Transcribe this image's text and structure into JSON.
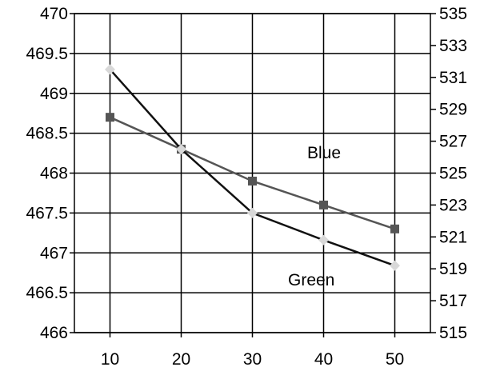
{
  "chart_data": {
    "type": "line",
    "x": [
      10,
      20,
      30,
      40,
      50
    ],
    "xlim": [
      5,
      55
    ],
    "x_ticks": [
      "10",
      "20",
      "30",
      "40",
      "50"
    ],
    "y_left": {
      "range": [
        466,
        470
      ],
      "ticks": [
        "466",
        "466.5",
        "467",
        "467.5",
        "468",
        "468.5",
        "469",
        "469.5",
        "470"
      ]
    },
    "y_right": {
      "range": [
        515,
        535
      ],
      "ticks": [
        "515",
        "517",
        "519",
        "521",
        "523",
        "525",
        "527",
        "529",
        "531",
        "533",
        "535"
      ]
    },
    "grid": true,
    "series": [
      {
        "name": "Blue",
        "axis": "left",
        "values": [
          468.7,
          468.3,
          467.9,
          467.6,
          467.3
        ],
        "line_color": "#555555",
        "marker": "square",
        "marker_color": "#555555"
      },
      {
        "name": "Green",
        "axis": "right",
        "values": [
          531.5,
          526.5,
          522.5,
          520.8,
          519.2
        ],
        "line_color": "#111111",
        "marker": "diamond",
        "marker_color": "#d8d8d8"
      }
    ]
  }
}
